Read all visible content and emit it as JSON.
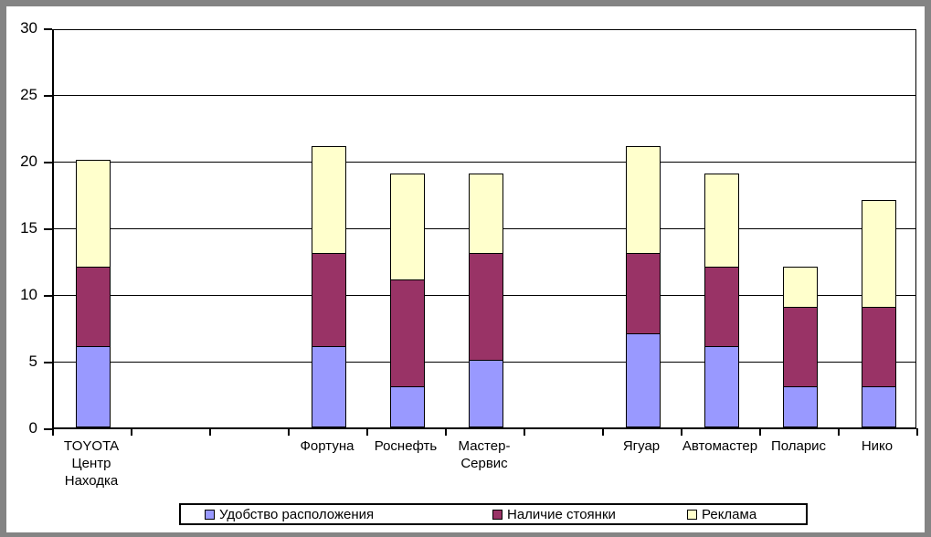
{
  "frame": {
    "border_color": "#848484",
    "background": "#ffffff",
    "line_color": "#000000"
  },
  "chart_data": {
    "type": "bar",
    "stacked": true,
    "title": "",
    "xlabel": "",
    "ylabel": "",
    "ylim": [
      0,
      30
    ],
    "yticks": [
      0,
      5,
      10,
      15,
      20,
      25,
      30
    ],
    "grid": true,
    "legend_position": "bottom",
    "categories": [
      "TOYOTA\nЦентр\nНаходка",
      "",
      "",
      "Фортуна",
      "Роснефть",
      "Мастер-\nСервис",
      "",
      "Ягуар",
      "Автомастер",
      "Поларис",
      "Нико"
    ],
    "series": [
      {
        "name": "Удобство расположения",
        "color": "#9999FF",
        "values": [
          6,
          0,
          0,
          6,
          3,
          5,
          0,
          7,
          6,
          3,
          3
        ]
      },
      {
        "name": "Наличие стоянки",
        "color": "#993366",
        "values": [
          6,
          0,
          0,
          7,
          8,
          8,
          0,
          6,
          6,
          6,
          6
        ]
      },
      {
        "name": "Реклама",
        "color": "#FFFFCC",
        "values": [
          8,
          0,
          0,
          8,
          8,
          6,
          0,
          8,
          7,
          3,
          8
        ]
      }
    ],
    "totals": [
      20,
      0,
      0,
      21,
      19,
      19,
      0,
      21,
      19,
      12,
      17
    ]
  }
}
